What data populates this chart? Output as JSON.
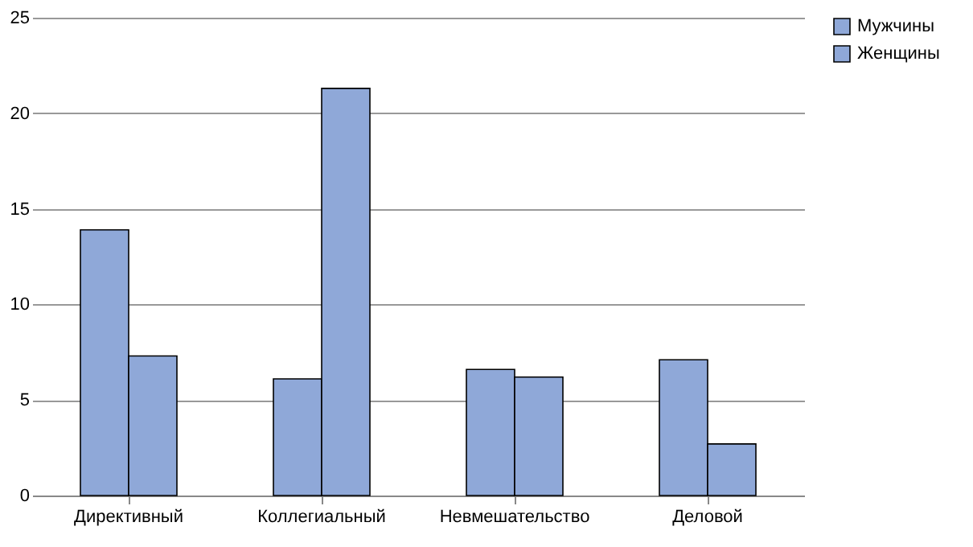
{
  "chart_data": {
    "type": "bar",
    "categories": [
      "Директивный",
      "Коллегиальный",
      "Невмешательство",
      "Деловой"
    ],
    "series": [
      {
        "name": "Мужчины",
        "color": "#8fa8d8",
        "values": [
          13.9,
          6.1,
          6.6,
          7.1
        ]
      },
      {
        "name": "Женщины",
        "color": "#8fa8d8",
        "values": [
          7.3,
          21.3,
          6.2,
          2.7
        ]
      }
    ],
    "ylim": [
      0,
      25
    ],
    "yticks": [
      0,
      5,
      10,
      15,
      20,
      25
    ],
    "grid": "y",
    "legend": "right"
  }
}
